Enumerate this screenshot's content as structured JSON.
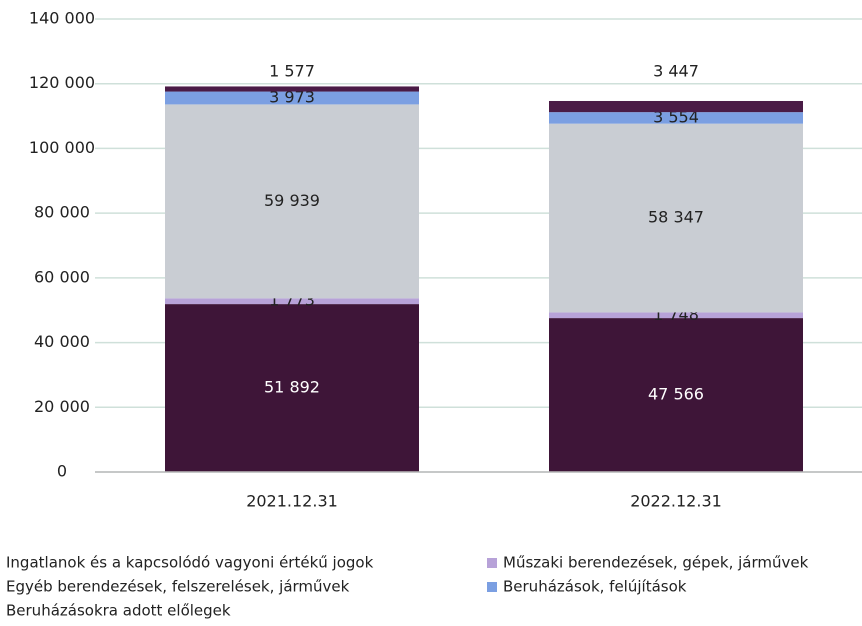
{
  "chart_data": {
    "type": "stacked_bar",
    "categories": [
      "2021.12.31",
      "2022.12.31"
    ],
    "series": [
      {
        "name": "Ingatlanok és a kapcsolódó vagyoni értékű jogok",
        "color": "#3e1538",
        "values": [
          51892,
          47566
        ],
        "value_labels": [
          "51 892",
          "47 566"
        ]
      },
      {
        "name": "Műszaki berendezések, gépek, járművek",
        "color": "#b7a2d8",
        "values": [
          1773,
          1748
        ],
        "value_labels": [
          "1 773",
          "1 748"
        ]
      },
      {
        "name": "Egyéb berendezések, felszerelések, járművek",
        "color": "#c9cdd3",
        "values": [
          59939,
          58347
        ],
        "value_labels": [
          "59 939",
          "58 347"
        ]
      },
      {
        "name": "Beruházások, felújítások",
        "color": "#7b9fe2",
        "values": [
          3973,
          3554
        ],
        "value_labels": [
          "3 973",
          "3 554"
        ]
      },
      {
        "name": "Beruházásokra adott előlegek",
        "color": "#4a1b46",
        "values": [
          1577,
          3447
        ],
        "value_labels": [
          "1 577",
          "3 447"
        ]
      }
    ],
    "ylim": [
      0,
      140000
    ],
    "yticks": [
      0,
      {
        "value": 20000,
        "label": "20 000"
      },
      {
        "value": 40000,
        "label": "40 000"
      },
      {
        "value": 60000,
        "label": "60 000"
      },
      {
        "value": 80000,
        "label": "80 000"
      },
      {
        "value": 100000,
        "label": "100 000"
      },
      {
        "value": 120000,
        "label": "120 000"
      },
      {
        "value": 140000,
        "label": "140 000"
      }
    ],
    "grid": true
  }
}
